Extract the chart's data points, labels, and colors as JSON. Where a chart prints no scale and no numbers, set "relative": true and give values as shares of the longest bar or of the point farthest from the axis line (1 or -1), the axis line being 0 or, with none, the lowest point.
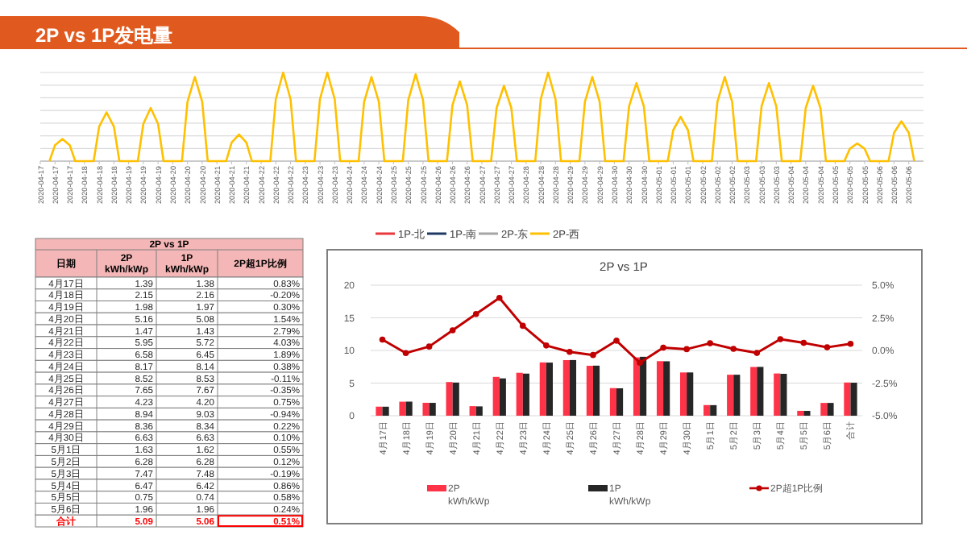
{
  "chart_data": [
    {
      "type": "line",
      "title": "2P vs 1P发电量",
      "relative": true,
      "grid": "y",
      "legend": "bottom",
      "marker": "none",
      "x": [
        "2020-04-17T05:00",
        "2020-04-17T08:00",
        "2020-04-17T12:00",
        "2020-04-17T16:00",
        "2020-04-17T19:00",
        "2020-04-18T05:00",
        "2020-04-18T08:00",
        "2020-04-18T12:00",
        "2020-04-18T16:00",
        "2020-04-18T19:00",
        "2020-04-19T05:00",
        "2020-04-19T08:00",
        "2020-04-19T12:00",
        "2020-04-19T16:00",
        "2020-04-19T19:00",
        "2020-04-20T05:00",
        "2020-04-20T08:00",
        "2020-04-20T12:00",
        "2020-04-20T16:00",
        "2020-04-20T19:00",
        "2020-04-21T05:00",
        "2020-04-21T08:00",
        "2020-04-21T12:00",
        "2020-04-21T16:00",
        "2020-04-21T19:00",
        "2020-04-22T05:00",
        "2020-04-22T08:00",
        "2020-04-22T12:00",
        "2020-04-22T16:00",
        "2020-04-22T19:00",
        "2020-04-23T05:00",
        "2020-04-23T08:00",
        "2020-04-23T12:00",
        "2020-04-23T16:00",
        "2020-04-23T19:00",
        "2020-04-24T05:00",
        "2020-04-24T08:00",
        "2020-04-24T12:00",
        "2020-04-24T16:00",
        "2020-04-24T19:00",
        "2020-04-25T05:00",
        "2020-04-25T08:00",
        "2020-04-25T12:00",
        "2020-04-25T16:00",
        "2020-04-25T19:00",
        "2020-04-26T05:00",
        "2020-04-26T08:00",
        "2020-04-26T12:00",
        "2020-04-26T16:00",
        "2020-04-26T19:00",
        "2020-04-27T05:00",
        "2020-04-27T08:00",
        "2020-04-27T12:00",
        "2020-04-27T16:00",
        "2020-04-27T19:00",
        "2020-04-28T05:00",
        "2020-04-28T08:00",
        "2020-04-28T12:00",
        "2020-04-28T16:00",
        "2020-04-28T19:00",
        "2020-04-29T05:00",
        "2020-04-29T08:00",
        "2020-04-29T12:00",
        "2020-04-29T16:00",
        "2020-04-29T19:00",
        "2020-04-30T05:00",
        "2020-04-30T08:00",
        "2020-04-30T12:00",
        "2020-04-30T16:00",
        "2020-04-30T19:00",
        "2020-05-01T05:00",
        "2020-05-01T08:00",
        "2020-05-01T12:00",
        "2020-05-01T16:00",
        "2020-05-01T19:00",
        "2020-05-02T05:00",
        "2020-05-02T08:00",
        "2020-05-02T12:00",
        "2020-05-02T16:00",
        "2020-05-02T19:00",
        "2020-05-03T05:00",
        "2020-05-03T08:00",
        "2020-05-03T12:00",
        "2020-05-03T16:00",
        "2020-05-03T19:00",
        "2020-05-04T05:00",
        "2020-05-04T08:00",
        "2020-05-04T12:00",
        "2020-05-04T16:00",
        "2020-05-04T19:00",
        "2020-05-05T05:00",
        "2020-05-05T08:00",
        "2020-05-05T12:00",
        "2020-05-05T16:00",
        "2020-05-05T19:00",
        "2020-05-06T05:00",
        "2020-05-06T08:00",
        "2020-05-06T12:00",
        "2020-05-06T16:00",
        "2020-05-06T19:00"
      ],
      "xlim": [
        "2020-04-17T00:00",
        "2020-05-07T00:00"
      ],
      "xticks": [
        {
          "value": "2020-04-17T00:00",
          "label": "2020-04-17"
        },
        {
          "value": "2020-04-17T08:00",
          "label": "2020-04-17"
        },
        {
          "value": "2020-04-17T16:00",
          "label": "2020-04-17"
        },
        {
          "value": "2020-04-18T00:00",
          "label": "2020-04-18"
        },
        {
          "value": "2020-04-18T08:00",
          "label": "2020-04-18"
        },
        {
          "value": "2020-04-18T16:00",
          "label": "2020-04-18"
        },
        {
          "value": "2020-04-19T00:00",
          "label": "2020-04-19"
        },
        {
          "value": "2020-04-19T08:00",
          "label": "2020-04-19"
        },
        {
          "value": "2020-04-19T16:00",
          "label": "2020-04-19"
        },
        {
          "value": "2020-04-20T00:00",
          "label": "2020-04-20"
        },
        {
          "value": "2020-04-20T08:00",
          "label": "2020-04-20"
        },
        {
          "value": "2020-04-20T16:00",
          "label": "2020-04-20"
        },
        {
          "value": "2020-04-21T00:00",
          "label": "2020-04-21"
        },
        {
          "value": "2020-04-21T08:00",
          "label": "2020-04-21"
        },
        {
          "value": "2020-04-21T16:00",
          "label": "2020-04-21"
        },
        {
          "value": "2020-04-22T00:00",
          "label": "2020-04-22"
        },
        {
          "value": "2020-04-22T08:00",
          "label": "2020-04-22"
        },
        {
          "value": "2020-04-22T16:00",
          "label": "2020-04-22"
        },
        {
          "value": "2020-04-23T00:00",
          "label": "2020-04-23"
        },
        {
          "value": "2020-04-23T08:00",
          "label": "2020-04-23"
        },
        {
          "value": "2020-04-23T16:00",
          "label": "2020-04-23"
        },
        {
          "value": "2020-04-24T00:00",
          "label": "2020-04-24"
        },
        {
          "value": "2020-04-24T08:00",
          "label": "2020-04-24"
        },
        {
          "value": "2020-04-24T16:00",
          "label": "2020-04-24"
        },
        {
          "value": "2020-04-25T00:00",
          "label": "2020-04-25"
        },
        {
          "value": "2020-04-25T08:00",
          "label": "2020-04-25"
        },
        {
          "value": "2020-04-25T16:00",
          "label": "2020-04-25"
        },
        {
          "value": "2020-04-26T00:00",
          "label": "2020-04-26"
        },
        {
          "value": "2020-04-26T08:00",
          "label": "2020-04-26"
        },
        {
          "value": "2020-04-26T16:00",
          "label": "2020-04-26"
        },
        {
          "value": "2020-04-27T00:00",
          "label": "2020-04-27"
        },
        {
          "value": "2020-04-27T08:00",
          "label": "2020-04-27"
        },
        {
          "value": "2020-04-27T16:00",
          "label": "2020-04-27"
        },
        {
          "value": "2020-04-28T00:00",
          "label": "2020-04-28"
        },
        {
          "value": "2020-04-28T08:00",
          "label": "2020-04-28"
        },
        {
          "value": "2020-04-28T16:00",
          "label": "2020-04-28"
        },
        {
          "value": "2020-04-29T00:00",
          "label": "2020-04-29"
        },
        {
          "value": "2020-04-29T08:00",
          "label": "2020-04-29"
        },
        {
          "value": "2020-04-29T16:00",
          "label": "2020-04-29"
        },
        {
          "value": "2020-04-30T00:00",
          "label": "2020-04-30"
        },
        {
          "value": "2020-04-30T08:00",
          "label": "2020-04-30"
        },
        {
          "value": "2020-04-30T16:00",
          "label": "2020-04-30"
        },
        {
          "value": "2020-05-01T00:00",
          "label": "2020-05-01"
        },
        {
          "value": "2020-05-01T08:00",
          "label": "2020-05-01"
        },
        {
          "value": "2020-05-01T16:00",
          "label": "2020-05-01"
        },
        {
          "value": "2020-05-02T00:00",
          "label": "2020-05-02"
        },
        {
          "value": "2020-05-02T08:00",
          "label": "2020-05-02"
        },
        {
          "value": "2020-05-02T16:00",
          "label": "2020-05-02"
        },
        {
          "value": "2020-05-03T00:00",
          "label": "2020-05-03"
        },
        {
          "value": "2020-05-03T08:00",
          "label": "2020-05-03"
        },
        {
          "value": "2020-05-03T16:00",
          "label": "2020-05-03"
        },
        {
          "value": "2020-05-04T00:00",
          "label": "2020-05-04"
        },
        {
          "value": "2020-05-04T08:00",
          "label": "2020-05-04"
        },
        {
          "value": "2020-05-04T16:00",
          "label": "2020-05-04"
        },
        {
          "value": "2020-05-05T00:00",
          "label": "2020-05-05"
        },
        {
          "value": "2020-05-05T08:00",
          "label": "2020-05-05"
        },
        {
          "value": "2020-05-05T16:00",
          "label": "2020-05-05"
        },
        {
          "value": "2020-05-06T00:00",
          "label": "2020-05-06"
        },
        {
          "value": "2020-05-06T08:00",
          "label": "2020-05-06"
        },
        {
          "value": "2020-05-06T16:00",
          "label": "2020-05-06"
        }
      ],
      "series": [
        {
          "name": "1P-北",
          "color": "#e8383d",
          "values": [
            null,
            null,
            null,
            null,
            null,
            null,
            null,
            null,
            null,
            null,
            null,
            null,
            null,
            null,
            null,
            null,
            null,
            null,
            null,
            null,
            null,
            null,
            null,
            null,
            null,
            null,
            null,
            null,
            null,
            null,
            null,
            null,
            null,
            null,
            null,
            null,
            null,
            null,
            null,
            null,
            null,
            null,
            null,
            null,
            null,
            null,
            null,
            null,
            null,
            null,
            null,
            null,
            null,
            null,
            null,
            null,
            null,
            null,
            null,
            null,
            null,
            null,
            null,
            null,
            null,
            null,
            null,
            null,
            null,
            null,
            null,
            null,
            null,
            null,
            null,
            null,
            null,
            null,
            null,
            null,
            null,
            null,
            null,
            null,
            null,
            null,
            null,
            null,
            null,
            null,
            null,
            null,
            null,
            null,
            null,
            null,
            null,
            null,
            null,
            null
          ]
        },
        {
          "name": "1P-南",
          "color": "#1f3864",
          "values": [
            null,
            null,
            null,
            null,
            null,
            null,
            null,
            null,
            null,
            null,
            null,
            null,
            null,
            null,
            null,
            null,
            null,
            null,
            null,
            null,
            null,
            null,
            null,
            null,
            null,
            null,
            null,
            null,
            null,
            null,
            null,
            null,
            null,
            null,
            null,
            null,
            null,
            null,
            null,
            null,
            null,
            null,
            null,
            null,
            null,
            null,
            null,
            null,
            null,
            null,
            null,
            null,
            null,
            null,
            null,
            null,
            null,
            null,
            null,
            null,
            null,
            null,
            null,
            null,
            null,
            null,
            null,
            null,
            null,
            null,
            null,
            null,
            null,
            null,
            null,
            null,
            null,
            null,
            null,
            null,
            null,
            null,
            null,
            null,
            null,
            null,
            null,
            null,
            null,
            null,
            null,
            null,
            null,
            null,
            null,
            null,
            null,
            null,
            null,
            null
          ]
        },
        {
          "name": "2P-东",
          "color": "#a5a5a5",
          "values": [
            null,
            null,
            null,
            null,
            null,
            null,
            null,
            null,
            null,
            null,
            null,
            null,
            null,
            null,
            null,
            null,
            null,
            null,
            null,
            null,
            null,
            null,
            null,
            null,
            null,
            null,
            null,
            null,
            null,
            null,
            null,
            null,
            null,
            null,
            null,
            null,
            null,
            null,
            null,
            null,
            null,
            null,
            null,
            null,
            null,
            null,
            null,
            null,
            null,
            null,
            null,
            null,
            null,
            null,
            null,
            null,
            null,
            null,
            null,
            null,
            null,
            null,
            null,
            null,
            null,
            null,
            null,
            null,
            null,
            null,
            null,
            null,
            null,
            null,
            null,
            null,
            null,
            null,
            null,
            null,
            null,
            null,
            null,
            null,
            null,
            null,
            null,
            null,
            null,
            null,
            null,
            null,
            null,
            null,
            null,
            null,
            null,
            null,
            null,
            null
          ]
        },
        {
          "name": "2P-西",
          "color": "#ffc000",
          "values": [
            0,
            0.18,
            0.25,
            0.18,
            0,
            0,
            0.39,
            0.55,
            0.39,
            0,
            0,
            0.42,
            0.6,
            0.42,
            0,
            0,
            0.67,
            0.95,
            0.67,
            0,
            0,
            0.21,
            0.3,
            0.21,
            0,
            0,
            0.7,
            1,
            0.7,
            0,
            0,
            0.7,
            1,
            0.7,
            0,
            0,
            0.67,
            0.95,
            0.67,
            0,
            0,
            0.69,
            0.98,
            0.69,
            0,
            0,
            0.63,
            0.9,
            0.63,
            0,
            0,
            0.6,
            0.85,
            0.6,
            0,
            0,
            0.7,
            1,
            0.7,
            0,
            0,
            0.67,
            0.95,
            0.67,
            0,
            0,
            0.62,
            0.88,
            0.62,
            0,
            0,
            0.35,
            0.5,
            0.35,
            0,
            0,
            0.67,
            0.95,
            0.67,
            0,
            0,
            0.62,
            0.88,
            0.62,
            0,
            0,
            0.6,
            0.85,
            0.6,
            0,
            0,
            0.14,
            0.2,
            0.14,
            0,
            0,
            0.32,
            0.45,
            0.32,
            0
          ]
        }
      ]
    },
    {
      "type": "other",
      "title": "2P vs 1P",
      "xlabel": "日期",
      "categories": [
        "4月17日",
        "4月18日",
        "4月19日",
        "4月20日",
        "4月21日",
        "4月22日",
        "4月23日",
        "4月24日",
        "4月25日",
        "4月26日",
        "4月27日",
        "4月28日",
        "4月29日",
        "4月30日",
        "5月1日",
        "5月2日",
        "5月3日",
        "5月4日",
        "5月5日",
        "5月6日",
        "合计"
      ],
      "series": [
        {
          "name": "2P kWh/kWp",
          "values": [
            1.39,
            2.15,
            1.98,
            5.16,
            1.47,
            5.95,
            6.58,
            8.17,
            8.52,
            7.65,
            4.23,
            8.94,
            8.36,
            6.63,
            1.63,
            6.28,
            7.47,
            6.47,
            0.75,
            1.96,
            5.09
          ],
          "value_labels": [
            "1.39",
            "2.15",
            "1.98",
            "5.16",
            "1.47",
            "5.95",
            "6.58",
            "8.17",
            "8.52",
            "7.65",
            "4.23",
            "8.94",
            "8.36",
            "6.63",
            "1.63",
            "6.28",
            "7.47",
            "6.47",
            "0.75",
            "1.96",
            "5.09"
          ]
        },
        {
          "name": "1P kWh/kWp",
          "values": [
            1.38,
            2.16,
            1.97,
            5.08,
            1.43,
            5.72,
            6.45,
            8.14,
            8.53,
            7.67,
            4.2,
            9.03,
            8.34,
            6.63,
            1.62,
            6.28,
            7.48,
            6.42,
            0.74,
            1.96,
            5.06
          ],
          "value_labels": [
            "1.38",
            "2.16",
            "1.97",
            "5.08",
            "1.43",
            "5.72",
            "6.45",
            "8.14",
            "8.53",
            "7.67",
            "4.20",
            "9.03",
            "8.34",
            "6.63",
            "1.62",
            "6.28",
            "7.48",
            "6.42",
            "0.74",
            "1.96",
            "5.06"
          ]
        },
        {
          "name": "2P超1P比例",
          "values": [
            0.83,
            -0.2,
            0.3,
            1.54,
            2.79,
            4.03,
            1.89,
            0.38,
            -0.11,
            -0.35,
            0.75,
            -0.94,
            0.22,
            0.1,
            0.55,
            0.12,
            -0.19,
            0.86,
            0.58,
            0.24,
            0.51
          ],
          "value_labels": [
            "0.83%",
            "-0.20%",
            "0.30%",
            "1.54%",
            "2.79%",
            "4.03%",
            "1.89%",
            "0.38%",
            "-0.11%",
            "-0.35%",
            "0.75%",
            "-0.94%",
            "0.22%",
            "0.10%",
            "0.55%",
            "0.12%",
            "-0.19%",
            "0.86%",
            "0.58%",
            "0.24%",
            "0.51%"
          ]
        }
      ]
    },
    {
      "type": "bar",
      "title": "2P vs 1P",
      "grid": "y",
      "legend": "bottom",
      "categories": [
        "4月17日",
        "4月18日",
        "4月19日",
        "4月20日",
        "4月21日",
        "4月22日",
        "4月23日",
        "4月24日",
        "4月25日",
        "4月26日",
        "4月27日",
        "4月28日",
        "4月29日",
        "4月30日",
        "5月1日",
        "5月2日",
        "5月3日",
        "5月4日",
        "5月5日",
        "5月6日",
        "合计"
      ],
      "ylim": [
        0,
        20
      ],
      "yticks": [
        0,
        5,
        10,
        15,
        20
      ],
      "y2lim": [
        -5,
        5
      ],
      "y2ticks": [
        {
          "value": -5,
          "label": "-5.0%"
        },
        {
          "value": -2.5,
          "label": "-2.5%"
        },
        {
          "value": 0,
          "label": "0.0%"
        },
        {
          "value": 2.5,
          "label": "2.5%"
        },
        {
          "value": 5,
          "label": "5.0%"
        }
      ],
      "series": [
        {
          "name": "2P kWh/kWp",
          "color": "#ff3348",
          "values": [
            1.39,
            2.15,
            1.98,
            5.16,
            1.47,
            5.95,
            6.58,
            8.17,
            8.52,
            7.65,
            4.23,
            8.94,
            8.36,
            6.63,
            1.63,
            6.28,
            7.47,
            6.47,
            0.75,
            1.96,
            5.09
          ]
        },
        {
          "name": "1P kWh/kWp",
          "color": "#262626",
          "values": [
            1.38,
            2.16,
            1.97,
            5.08,
            1.43,
            5.72,
            6.45,
            8.14,
            8.53,
            7.67,
            4.2,
            9.03,
            8.34,
            6.63,
            1.62,
            6.28,
            7.48,
            6.42,
            0.74,
            1.96,
            5.06
          ]
        },
        {
          "name": "2P超1P比例",
          "type": "line",
          "axis": "y2",
          "color": "#c00000",
          "marker": "circle",
          "values": [
            0.83,
            -0.2,
            0.3,
            1.54,
            2.79,
            4.03,
            1.89,
            0.38,
            -0.11,
            -0.35,
            0.75,
            -0.94,
            0.22,
            0.1,
            0.55,
            0.12,
            -0.19,
            0.86,
            0.58,
            0.24,
            0.51
          ]
        }
      ]
    }
  ]
}
